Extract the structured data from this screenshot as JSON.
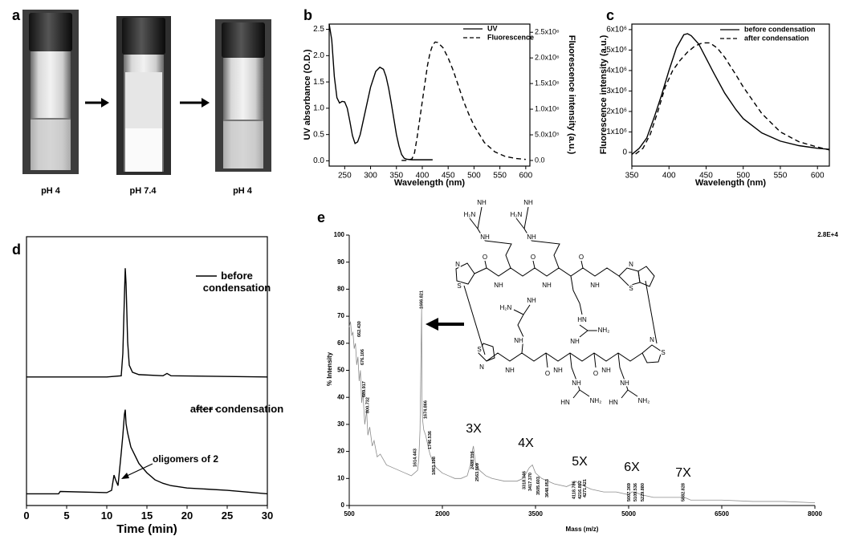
{
  "figure_a": {
    "panel": "a",
    "labels": [
      "pH 4",
      "pH 7.4",
      "pH 4"
    ]
  },
  "structure": {
    "labels": [
      "H₂N",
      "NH",
      "NH",
      "H₂N",
      "NH",
      "NH",
      "N",
      "S",
      "O",
      "NH",
      "O",
      "NH",
      "O",
      "NH",
      "HN",
      "NH₂",
      "NH",
      "N",
      "S",
      "H₂N",
      "NH",
      "NH",
      "S",
      "N",
      "NH",
      "O",
      "NH",
      "O",
      "NH",
      "NH",
      "HN",
      "NH₂",
      "NH",
      "HN",
      "NH₂",
      "N",
      "S"
    ]
  },
  "chart_data": [
    {
      "panel": "b",
      "type": "line",
      "x_label": "Wavelength (nm)",
      "y_label": "UV absorbance (O.D.)",
      "y2_label": "Fluorescence intensity (a.u.)",
      "xlim": [
        220,
        608
      ],
      "xticks": [
        250,
        300,
        350,
        400,
        450,
        500,
        550,
        600
      ],
      "ylim": [
        -0.1,
        2.6
      ],
      "yticks": [
        {
          "value": 0,
          "label": "0.0"
        },
        0.5,
        {
          "value": 1,
          "label": "1.0"
        },
        1.5,
        {
          "value": 2,
          "label": "2.0"
        },
        2.5
      ],
      "y2lim": [
        -110000,
        2660000
      ],
      "y2ticks": [
        {
          "value": 0,
          "label": "0.0"
        },
        {
          "value": 500000,
          "label": "5.0x10⁵"
        },
        {
          "value": 1000000,
          "label": "1.0x10⁶"
        },
        {
          "value": 1500000,
          "label": "1.5x10⁶"
        },
        {
          "value": 2000000,
          "label": "2.0x10⁶"
        },
        {
          "value": 2500000,
          "label": "2.5x10⁶"
        }
      ],
      "legend": "upper right",
      "series": [
        {
          "name": "UV",
          "color": "#000000",
          "linestyle": "solid",
          "x": [
            220,
            225,
            230,
            235,
            240,
            245,
            250,
            255,
            260,
            265,
            270,
            275,
            280,
            290,
            300,
            310,
            318,
            325,
            330,
            335,
            340,
            345,
            350,
            355,
            360,
            365,
            370,
            380,
            400,
            420
          ],
          "values": [
            2.6,
            2.3,
            1.6,
            1.2,
            1.1,
            1.13,
            1.12,
            1.0,
            0.75,
            0.48,
            0.33,
            0.36,
            0.5,
            0.95,
            1.4,
            1.7,
            1.78,
            1.74,
            1.6,
            1.38,
            1.1,
            0.8,
            0.5,
            0.28,
            0.12,
            0.05,
            0.03,
            0.02,
            0.02,
            0.02
          ]
        },
        {
          "name": "Fluorescence",
          "color": "#000000",
          "linestyle": "dashed",
          "axis": "y2",
          "x": [
            360,
            370,
            380,
            385,
            390,
            395,
            400,
            405,
            410,
            415,
            420,
            425,
            430,
            440,
            450,
            460,
            470,
            480,
            490,
            500,
            520,
            540,
            560,
            580,
            600
          ],
          "values": [
            0,
            0,
            30000,
            150000,
            450000,
            800000,
            1150000,
            1500000,
            1850000,
            2100000,
            2250000,
            2310000,
            2300000,
            2200000,
            2000000,
            1750000,
            1450000,
            1150000,
            900000,
            680000,
            350000,
            170000,
            80000,
            40000,
            20000
          ]
        }
      ]
    },
    {
      "panel": "c",
      "type": "line",
      "x_label": "Wavelength (nm)",
      "y_label": "Fluorescence intensity (a.u.)",
      "xlim": [
        350,
        616
      ],
      "xticks": [
        350,
        400,
        450,
        500,
        550,
        600
      ],
      "ylim": [
        -670000,
        6270000
      ],
      "yticks": [
        0,
        {
          "value": 1000000,
          "label": "1x10⁶"
        },
        {
          "value": 2000000,
          "label": "2x10⁶"
        },
        {
          "value": 3000000,
          "label": "3x10⁶"
        },
        {
          "value": 4000000,
          "label": "4x10⁶"
        },
        {
          "value": 5000000,
          "label": "5x10⁶"
        },
        {
          "value": 6000000,
          "label": "6x10⁶"
        }
      ],
      "legend": "upper right",
      "series": [
        {
          "name": "before condensation",
          "color": "#000000",
          "linestyle": "solid",
          "x": [
            350,
            360,
            370,
            380,
            390,
            400,
            410,
            420,
            425,
            430,
            440,
            450,
            460,
            475,
            490,
            500,
            525,
            550,
            575,
            600,
            616
          ],
          "values": [
            -100000,
            200000,
            700000,
            1700000,
            2800000,
            4000000,
            5100000,
            5750000,
            5800000,
            5700000,
            5300000,
            4600000,
            3900000,
            2900000,
            2100000,
            1650000,
            950000,
            550000,
            330000,
            200000,
            150000
          ]
        },
        {
          "name": "after condensation",
          "color": "#000000",
          "linestyle": "dashed",
          "x": [
            355,
            365,
            375,
            385,
            395,
            405,
            415,
            425,
            435,
            445,
            455,
            465,
            475,
            490,
            500,
            525,
            550,
            575,
            600,
            616
          ],
          "values": [
            -80000,
            200000,
            900000,
            2000000,
            3200000,
            4000000,
            4500000,
            4900000,
            5200000,
            5350000,
            5350000,
            5100000,
            4650000,
            3800000,
            3200000,
            1900000,
            1000000,
            520000,
            260000,
            120000
          ]
        }
      ]
    },
    {
      "panel": "d",
      "type": "line",
      "x_label": "Time (min)",
      "annotation": "oligomers of 2",
      "xlim": [
        0,
        30
      ],
      "xticks": [
        0,
        5,
        10,
        15,
        20,
        25,
        30
      ],
      "ylim": [
        0,
        2.3
      ],
      "series": [
        {
          "name": "before condensation",
          "color": "#000000",
          "linestyle": "solid",
          "x": [
            0,
            10,
            11.8,
            12.0,
            12.2,
            12.3,
            12.4,
            12.6,
            12.8,
            13.2,
            14,
            17,
            17.5,
            18,
            30
          ],
          "values": [
            1.1,
            1.1,
            1.11,
            1.3,
            1.8,
            2.03,
            1.9,
            1.4,
            1.2,
            1.14,
            1.12,
            1.11,
            1.13,
            1.11,
            1.1
          ]
        },
        {
          "name": "after condensation",
          "color": "#000000",
          "linestyle": "solid",
          "x": [
            0,
            4,
            4.2,
            10,
            10.6,
            10.9,
            11.1,
            11.4,
            11.8,
            12.0,
            12.2,
            12.3,
            12.4,
            12.6,
            13,
            14,
            15,
            16,
            17,
            18,
            20,
            25,
            30
          ],
          "values": [
            0.1,
            0.1,
            0.12,
            0.11,
            0.13,
            0.26,
            0.22,
            0.17,
            0.45,
            0.6,
            0.78,
            0.82,
            0.7,
            0.62,
            0.5,
            0.36,
            0.28,
            0.22,
            0.19,
            0.17,
            0.15,
            0.13,
            0.1
          ]
        }
      ]
    },
    {
      "panel": "e",
      "type": "line",
      "x_label": "Mass (m/z)",
      "y_label": "% Intensity",
      "y_max_label": "2.8E+4",
      "xlim": [
        500,
        8000
      ],
      "xticks": [
        500,
        2000,
        3500,
        5000,
        6500,
        8000
      ],
      "ylim": [
        0,
        100
      ],
      "yticks": [
        0,
        10,
        20,
        30,
        40,
        50,
        60,
        70,
        80,
        90,
        100
      ],
      "series": [
        {
          "color": "#8c8c8c",
          "x": [
            500,
            520,
            540,
            560,
            580,
            600,
            620,
            640,
            660,
            680,
            700,
            720,
            750,
            780,
            800,
            830,
            870,
            900,
            950,
            1000,
            1100,
            1200,
            1300,
            1400,
            1500,
            1550,
            1600,
            1620,
            1640,
            1655,
            1666,
            1672,
            1680,
            1700,
            1730,
            1750,
            1780,
            1800,
            1850,
            1900,
            2000,
            2100,
            2200,
            2300,
            2400,
            2450,
            2480,
            2500,
            2530,
            2600,
            2700,
            2800,
            3000,
            3200,
            3300,
            3350,
            3400,
            3450,
            3500,
            3600,
            3700,
            3800,
            4000,
            4100,
            4150,
            4200,
            4300,
            4400,
            4600,
            4800,
            5000,
            5050,
            5100,
            5200,
            5400,
            5800,
            5900,
            6000,
            6500,
            7000,
            7500,
            8000
          ],
          "values": [
            66,
            68,
            63,
            64,
            58,
            60,
            52,
            55,
            46,
            50,
            38,
            42,
            30,
            35,
            26,
            29,
            22,
            24,
            18,
            19,
            15,
            14,
            13,
            12,
            11,
            12,
            13,
            17,
            28,
            55,
            73,
            38,
            32,
            28,
            26,
            24,
            21,
            19,
            16,
            14,
            12,
            11,
            10,
            10,
            11,
            15,
            20,
            22,
            16,
            13,
            11,
            10,
            9,
            9,
            10,
            12,
            14,
            15,
            12,
            10,
            9,
            8,
            7,
            8,
            9,
            8,
            7,
            6,
            5,
            5,
            4,
            5,
            5,
            4,
            3,
            3,
            3,
            2,
            2,
            1.5,
            1.5,
            1
          ]
        }
      ],
      "peak_labels": [
        {
          "value": 662.43,
          "label": "662.430"
        },
        {
          "value": 676.106,
          "label": "676.106"
        },
        {
          "value": 689.917,
          "label": "689.917"
        },
        {
          "value": 800.732,
          "label": "800.732"
        },
        {
          "value": 1666.821,
          "label": "1666.821"
        },
        {
          "value": 1674.866,
          "label": "1674.866"
        },
        {
          "value": 1614.443,
          "label": "1614.443"
        },
        {
          "value": 1746.536,
          "label": "1746.536"
        },
        {
          "value": 1863.198,
          "label": "1863.198"
        },
        {
          "value": 2488.116,
          "label": "2488.116"
        },
        {
          "value": 2563.909,
          "label": "2563.909"
        },
        {
          "value": 3318.346,
          "label": "3318.346"
        },
        {
          "value": 3417.37,
          "label": "3417.370"
        },
        {
          "value": 3505.603,
          "label": "3505.603"
        },
        {
          "value": 3648.053,
          "label": "3648.053"
        },
        {
          "value": 4118.786,
          "label": "4118.786"
        },
        {
          "value": 4216.802,
          "label": "4216.802"
        },
        {
          "value": 4271.421,
          "label": "4271.421"
        },
        {
          "value": 5007.369,
          "label": "5007.369"
        },
        {
          "value": 5109.536,
          "label": "5109.536"
        },
        {
          "value": 5229.88,
          "label": "5229.880"
        },
        {
          "value": 5882.828,
          "label": "5882.828"
        }
      ],
      "multimer_labels": [
        "3X",
        "4X",
        "5X",
        "6X",
        "7X"
      ]
    }
  ]
}
